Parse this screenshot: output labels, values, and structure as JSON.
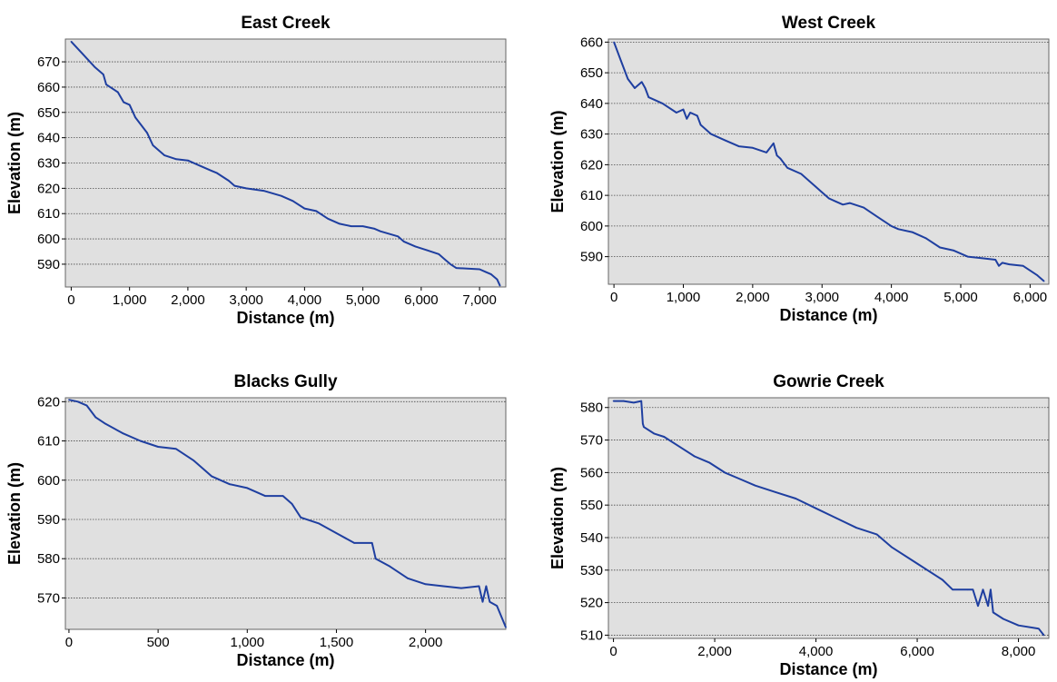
{
  "chart_data": [
    {
      "type": "line",
      "title": "East Creek",
      "xlabel": "Distance (m)",
      "ylabel": "Elevation (m)",
      "xlim": [
        -100,
        7450
      ],
      "ylim": [
        581,
        679
      ],
      "xticks": [
        0,
        1000,
        2000,
        3000,
        4000,
        5000,
        6000,
        7000
      ],
      "xtick_labels": [
        "0",
        "1,000",
        "2,000",
        "3,000",
        "4,000",
        "5,000",
        "6,000",
        "7,000"
      ],
      "yticks": [
        590,
        600,
        610,
        620,
        630,
        640,
        650,
        660,
        670
      ],
      "ytick_labels": [
        "590",
        "600",
        "610",
        "620",
        "630",
        "640",
        "650",
        "660",
        "670"
      ],
      "grid": true,
      "series": [
        {
          "color": "#1f3fa0",
          "x": [
            0,
            200,
            400,
            550,
            600,
            800,
            900,
            1000,
            1100,
            1300,
            1400,
            1600,
            1800,
            2000,
            2200,
            2400,
            2500,
            2700,
            2800,
            3000,
            3300,
            3600,
            3800,
            4000,
            4200,
            4400,
            4600,
            4800,
            5000,
            5200,
            5300,
            5600,
            5700,
            5900,
            6100,
            6300,
            6400,
            6500,
            6600,
            7000,
            7100,
            7200,
            7300,
            7350
          ],
          "y": [
            678,
            673,
            668,
            665,
            661,
            658,
            654,
            653,
            648,
            642,
            637,
            633,
            631.5,
            631,
            629,
            627,
            626,
            623,
            621,
            620,
            619,
            617,
            615,
            612,
            611,
            608,
            606,
            605,
            605,
            604,
            603,
            601,
            599,
            597,
            595.5,
            594,
            592,
            590,
            588.5,
            588,
            587,
            586,
            584,
            581.5
          ]
        }
      ]
    },
    {
      "type": "line",
      "title": "West Creek",
      "xlabel": "Distance (m)",
      "ylabel": "Elevation (m)",
      "xlim": [
        -80,
        6270
      ],
      "ylim": [
        581,
        661
      ],
      "xticks": [
        0,
        1000,
        2000,
        3000,
        4000,
        5000,
        6000
      ],
      "xtick_labels": [
        "0",
        "1,000",
        "2,000",
        "3,000",
        "4,000",
        "5,000",
        "6,000"
      ],
      "yticks": [
        590,
        600,
        610,
        620,
        630,
        640,
        650,
        660
      ],
      "ytick_labels": [
        "590",
        "600",
        "610",
        "620",
        "630",
        "640",
        "650",
        "660"
      ],
      "grid": true,
      "series": [
        {
          "color": "#1f3fa0",
          "x": [
            0,
            100,
            200,
            300,
            400,
            450,
            500,
            700,
            900,
            1000,
            1050,
            1100,
            1200,
            1250,
            1400,
            1600,
            1800,
            2000,
            2200,
            2300,
            2350,
            2400,
            2500,
            2700,
            2900,
            3000,
            3100,
            3200,
            3300,
            3400,
            3600,
            3800,
            4000,
            4100,
            4300,
            4500,
            4700,
            4900,
            5100,
            5300,
            5500,
            5550,
            5600,
            5700,
            5900,
            6100,
            6200
          ],
          "y": [
            660,
            654,
            648,
            645,
            647,
            645,
            642,
            640,
            637,
            638,
            635,
            637,
            636,
            633,
            630,
            628,
            626,
            625.5,
            624,
            627,
            623,
            622,
            619,
            617,
            613,
            611,
            609,
            608,
            607,
            607.5,
            606,
            603,
            600,
            599,
            598,
            596,
            593,
            592,
            590,
            589.5,
            589,
            587,
            588,
            587.5,
            587,
            584,
            582
          ]
        }
      ]
    },
    {
      "type": "line",
      "title": "Blacks Gully",
      "xlabel": "Distance (m)",
      "ylabel": "Elevation (m)",
      "xlim": [
        -20,
        2450
      ],
      "ylim": [
        562,
        621
      ],
      "xticks": [
        0,
        500,
        1000,
        1500,
        2000
      ],
      "xtick_labels": [
        "0",
        "500",
        "1,000",
        "1,500",
        "2,000"
      ],
      "yticks": [
        570,
        580,
        590,
        600,
        610,
        620
      ],
      "ytick_labels": [
        "570",
        "580",
        "590",
        "600",
        "610",
        "620"
      ],
      "grid": true,
      "series": [
        {
          "color": "#1f3fa0",
          "x": [
            0,
            50,
            100,
            150,
            200,
            300,
            400,
            500,
            600,
            700,
            800,
            900,
            1000,
            1100,
            1200,
            1250,
            1300,
            1400,
            1500,
            1600,
            1700,
            1720,
            1800,
            1900,
            2000,
            2100,
            2200,
            2300,
            2320,
            2340,
            2360,
            2400,
            2450
          ],
          "y": [
            620.5,
            620,
            619,
            616,
            614.5,
            612,
            610,
            608.5,
            608,
            605,
            601,
            599,
            598,
            596,
            596,
            594,
            590.5,
            589,
            586.5,
            584,
            584,
            580,
            578,
            575,
            573.5,
            573,
            572.5,
            573,
            569,
            573,
            569,
            568,
            562.5
          ]
        }
      ]
    },
    {
      "type": "line",
      "title": "Gowrie Creek",
      "xlabel": "Distance (m)",
      "ylabel": "Elevation (m)",
      "xlim": [
        -100,
        8600
      ],
      "ylim": [
        509,
        583
      ],
      "xticks": [
        0,
        2000,
        4000,
        6000,
        8000
      ],
      "xtick_labels": [
        "0",
        "2,000",
        "4,000",
        "6,000",
        "8,000"
      ],
      "yticks": [
        510,
        520,
        530,
        540,
        550,
        560,
        570,
        580
      ],
      "ytick_labels": [
        "510",
        "520",
        "530",
        "540",
        "550",
        "560",
        "570",
        "580"
      ],
      "grid": true,
      "series": [
        {
          "color": "#1f3fa0",
          "x": [
            0,
            200,
            400,
            550,
            580,
            600,
            800,
            1000,
            1300,
            1600,
            1900,
            2200,
            2500,
            2800,
            3200,
            3600,
            4000,
            4400,
            4800,
            5200,
            5500,
            6000,
            6500,
            6700,
            7000,
            7100,
            7200,
            7300,
            7400,
            7450,
            7500,
            7700,
            8000,
            8400,
            8500
          ],
          "y": [
            582,
            582,
            581.5,
            582,
            575,
            574,
            572,
            571,
            568,
            565,
            563,
            560,
            558,
            556,
            554,
            552,
            549,
            546,
            543,
            541,
            537,
            532,
            527,
            524,
            524,
            524,
            519,
            524,
            519,
            524,
            517,
            515,
            513,
            512,
            510
          ]
        }
      ]
    }
  ]
}
